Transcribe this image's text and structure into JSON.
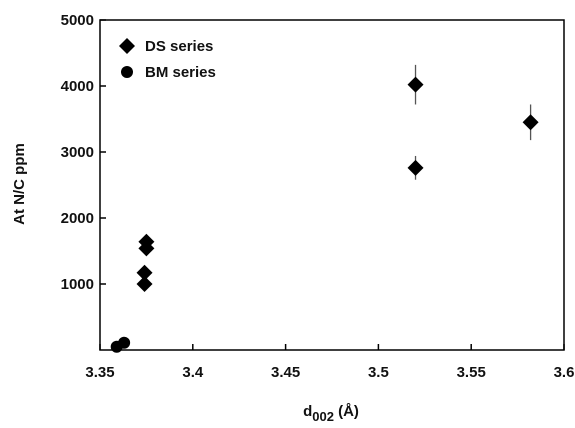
{
  "chart_data": {
    "type": "scatter",
    "title": "",
    "xlabel_main": "d",
    "xlabel_sub": "002",
    "xlabel_unit": " (Å)",
    "ylabel": "At N/C ppm",
    "xlim": [
      3.35,
      3.6
    ],
    "ylim": [
      0,
      5000
    ],
    "xticks": [
      "3.35",
      "3.4",
      "3.45",
      "3.5",
      "3.55",
      "3.6"
    ],
    "yticks": [
      "1000",
      "2000",
      "3000",
      "4000",
      "5000"
    ],
    "grid": false,
    "legend_position": "top-left",
    "series": [
      {
        "name": "DS series",
        "marker": "diamond",
        "points": [
          {
            "x": 3.374,
            "y": 1000
          },
          {
            "x": 3.374,
            "y": 1170
          },
          {
            "x": 3.375,
            "y": 1540
          },
          {
            "x": 3.375,
            "y": 1640
          },
          {
            "x": 3.52,
            "y": 2760,
            "err": 180
          },
          {
            "x": 3.52,
            "y": 4020,
            "err": 300
          },
          {
            "x": 3.582,
            "y": 3450,
            "err": 270
          }
        ]
      },
      {
        "name": "BM series",
        "marker": "circle",
        "points": [
          {
            "x": 3.359,
            "y": 50
          },
          {
            "x": 3.363,
            "y": 110
          }
        ]
      }
    ]
  },
  "colors": {
    "marker": "#000000",
    "axis": "#000000",
    "errorbar": "#555555"
  }
}
